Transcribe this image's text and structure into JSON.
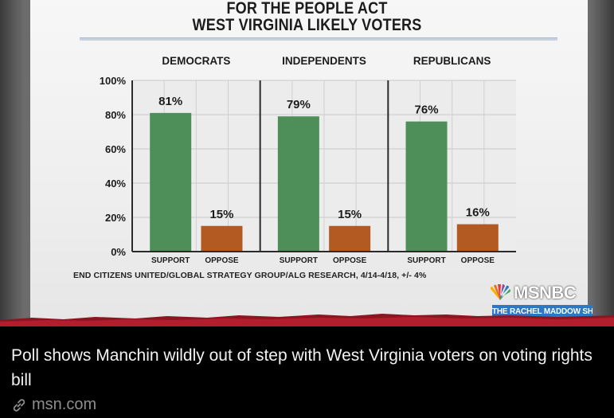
{
  "card": {
    "title_line1": "FOR THE PEOPLE ACT",
    "title_line2": "WEST VIRGINIA LIKELY VOTERS",
    "source": "END CITIZENS UNITED/GLOBAL STRATEGY GROUP/ALG RESEARCH, 4/14-4/18, +/- 4%",
    "logo_text": "MSNBC",
    "show_badge": "THE RACHEL MADDOW SHOW"
  },
  "caption": {
    "headline": "Poll shows Manchin wildly out of step with West Virginia voters on voting rights bill",
    "site": "msn.com",
    "site_icon": "link-icon"
  },
  "colors": {
    "support": "#4e8e59",
    "oppose": "#b35a23",
    "badge": "#2a79c2",
    "panel_border": "#2b2b2b"
  },
  "chart_data": {
    "type": "bar",
    "title": "FOR THE PEOPLE ACT / WEST VIRGINIA LIKELY VOTERS",
    "groups": [
      "DEMOCRATS",
      "INDEPENDENTS",
      "REPUBLICANS"
    ],
    "categories": [
      "SUPPORT",
      "OPPOSE"
    ],
    "series": [
      {
        "group": "DEMOCRATS",
        "values": [
          81,
          15
        ],
        "labels": [
          "81%",
          "15%"
        ]
      },
      {
        "group": "INDEPENDENTS",
        "values": [
          79,
          15
        ],
        "labels": [
          "79%",
          "15%"
        ]
      },
      {
        "group": "REPUBLICANS",
        "values": [
          76,
          16
        ],
        "labels": [
          "76%",
          "16%"
        ]
      }
    ],
    "yticks": [
      "100%",
      "80%",
      "60%",
      "40%",
      "20%",
      "0%"
    ],
    "ylim": [
      0,
      100
    ],
    "grid": true,
    "xlabel": "",
    "ylabel": ""
  }
}
